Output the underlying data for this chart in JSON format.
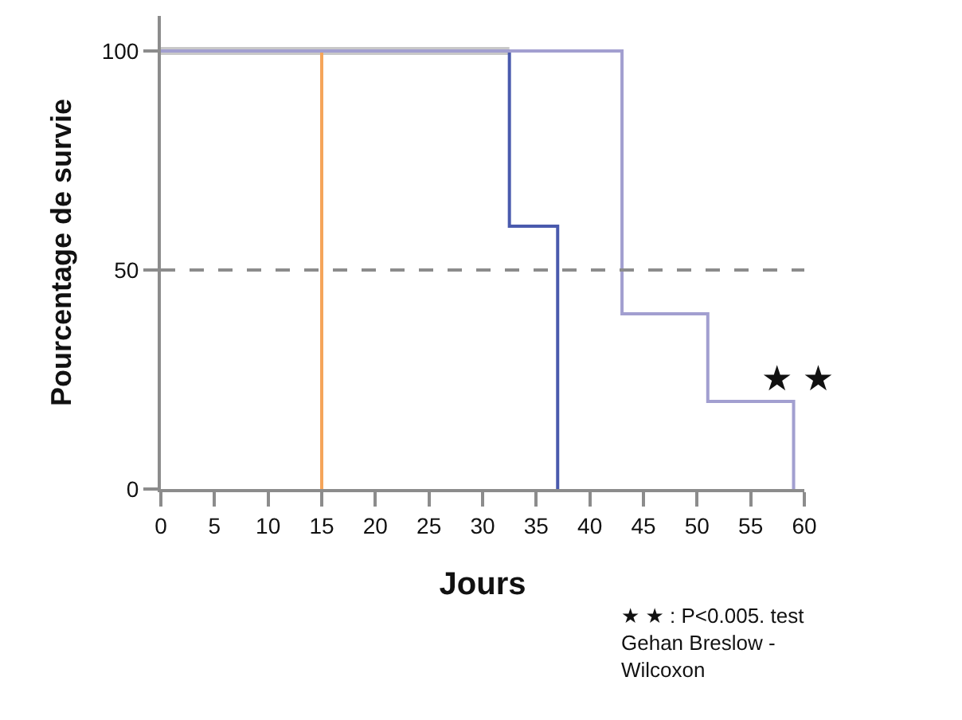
{
  "chart_data": {
    "type": "step",
    "xlabel": "Jours",
    "ylabel": "Pourcentage de survie",
    "series": [
      {
        "color": "#c8c8c8",
        "x": [
          0,
          32.5
        ],
        "values": [
          100,
          100
        ]
      },
      {
        "color": "#f5a55a",
        "x": [
          0,
          15
        ],
        "values": [
          100,
          0
        ]
      },
      {
        "color": "#4a5aad",
        "x": [
          0,
          32.5,
          37
        ],
        "values": [
          100,
          60,
          0
        ]
      },
      {
        "color": "#a29fd0",
        "x": [
          0,
          43,
          51,
          59
        ],
        "values": [
          100,
          40,
          20,
          0
        ]
      }
    ],
    "xlim": [
      0,
      60
    ],
    "xticks": [
      0,
      5,
      10,
      15,
      20,
      25,
      30,
      35,
      40,
      45,
      50,
      55,
      60
    ],
    "ylim": [
      0,
      108
    ],
    "yticks": [
      0,
      50,
      100
    ],
    "grid": false,
    "marker": "none",
    "line_style": "solid",
    "ref_lines": [
      {
        "axis": "y",
        "value": 50,
        "color": "#8c8c8c",
        "line_style": "dashed"
      }
    ],
    "annotations": [
      "★ ★",
      "★ ★ : P<0.005. test\nGehan Breslow -\nWilcoxon"
    ]
  }
}
